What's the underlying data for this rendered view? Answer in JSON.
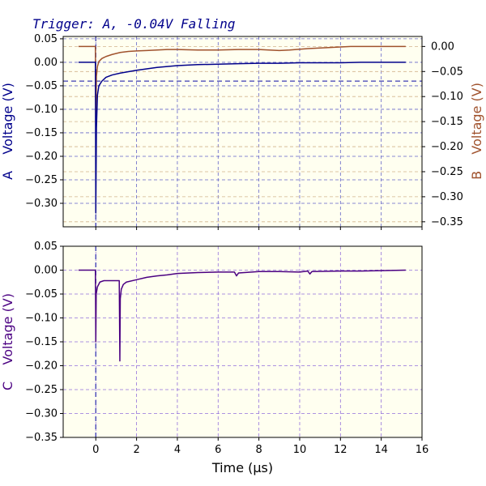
{
  "figure": {
    "title": "Trigger: A, -0.04V Falling",
    "colors": {
      "channel_a": "#00008b",
      "channel_b": "#a0522d",
      "channel_c": "#4b0082",
      "panel_bg": "#fffff0",
      "grid_blue": "#6464c8",
      "grid_b": "#d2b48c",
      "grid_c": "#9370db"
    }
  },
  "chart_data": [
    {
      "type": "line",
      "panel": "top",
      "xlim": [
        -1.6,
        16
      ],
      "ylim": [
        -0.35,
        0.055
      ],
      "y2lim": [
        -0.36,
        0.02
      ],
      "xticks": [
        0,
        2,
        4,
        6,
        8,
        10,
        12,
        14,
        16
      ],
      "yticks": [
        0.05,
        0.0,
        -0.05,
        -0.1,
        -0.15,
        -0.2,
        -0.25,
        -0.3
      ],
      "ytick_labels": [
        "0.05",
        "0.00",
        "−0.05",
        "−0.10",
        "−0.15",
        "−0.20",
        "−0.25",
        "−0.30"
      ],
      "y2ticks": [
        0.0,
        -0.05,
        -0.1,
        -0.15,
        -0.2,
        -0.25,
        -0.3,
        -0.35
      ],
      "y2tick_labels": [
        "0.00",
        "−0.05",
        "−0.10",
        "−0.15",
        "−0.20",
        "−0.25",
        "−0.30",
        "−0.35"
      ],
      "ylabel_channel": "A",
      "ylabel": "Voltage (V)",
      "y2label_channel": "B",
      "y2label": "Voltage (V)",
      "trigger_level": -0.04,
      "trigger_time": 0,
      "grid": true,
      "series": [
        {
          "axis": "left",
          "x": [
            -0.85,
            -0.02,
            0.0,
            0.03,
            0.08,
            0.15,
            0.3,
            0.5,
            0.8,
            1.2,
            1.6,
            2.0,
            2.5,
            3.0,
            3.5,
            4.0,
            5.0,
            6.0,
            7.0,
            8.0,
            9.0,
            10.0,
            11.0,
            12.0,
            13.0,
            14.0,
            15.2
          ],
          "y": [
            0.0,
            0.0,
            -0.32,
            -0.14,
            -0.07,
            -0.05,
            -0.04,
            -0.032,
            -0.027,
            -0.023,
            -0.02,
            -0.017,
            -0.014,
            -0.011,
            -0.009,
            -0.007,
            -0.005,
            -0.004,
            -0.003,
            -0.002,
            -0.002,
            -0.001,
            -0.001,
            -0.001,
            0.0,
            0.0,
            0.0
          ]
        },
        {
          "axis": "right",
          "x": [
            -0.85,
            -0.02,
            0.0,
            0.03,
            0.08,
            0.15,
            0.3,
            0.5,
            0.8,
            1.2,
            1.6,
            2.0,
            2.5,
            3.0,
            3.5,
            4.0,
            5.0,
            6.0,
            7.0,
            8.0,
            9.0,
            9.5,
            10.5,
            11.5,
            12.5,
            13.5,
            15.2
          ],
          "y": [
            0.0,
            0.0,
            -0.17,
            -0.06,
            -0.04,
            -0.03,
            -0.024,
            -0.02,
            -0.016,
            -0.012,
            -0.01,
            -0.009,
            -0.008,
            -0.007,
            -0.006,
            -0.006,
            -0.007,
            -0.007,
            -0.006,
            -0.006,
            -0.008,
            -0.007,
            -0.004,
            -0.002,
            0.0,
            0.0,
            0.0
          ]
        }
      ]
    },
    {
      "type": "line",
      "panel": "bottom",
      "xlim": [
        -1.6,
        16
      ],
      "ylim": [
        -0.35,
        0.05
      ],
      "xticks": [
        0,
        2,
        4,
        6,
        8,
        10,
        12,
        14,
        16
      ],
      "xtick_labels": [
        "0",
        "2",
        "4",
        "6",
        "8",
        "10",
        "12",
        "14",
        "16"
      ],
      "yticks": [
        0.05,
        0.0,
        -0.05,
        -0.1,
        -0.15,
        -0.2,
        -0.25,
        -0.3,
        -0.35
      ],
      "ytick_labels": [
        "0.05",
        "0.00",
        "−0.05",
        "−0.10",
        "−0.15",
        "−0.20",
        "−0.25",
        "−0.30",
        "−0.35"
      ],
      "xlabel": "Time (µs)",
      "ylabel_channel": "C",
      "ylabel": "Voltage (V)",
      "grid": true,
      "series": [
        {
          "x": [
            -0.85,
            -0.02,
            0.0,
            0.02,
            0.08,
            0.2,
            0.4,
            0.8,
            1.15,
            1.18,
            1.2,
            1.25,
            1.35,
            1.5,
            2.0,
            2.5,
            3.0,
            3.5,
            4.0,
            5.0,
            6.0,
            6.8,
            6.9,
            7.0,
            8.0,
            9.0,
            10.0,
            10.4,
            10.5,
            10.6,
            12.0,
            13.0,
            14.0,
            15.2
          ],
          "y": [
            0.0,
            0.0,
            -0.15,
            -0.05,
            -0.035,
            -0.025,
            -0.022,
            -0.022,
            -0.022,
            -0.19,
            -0.06,
            -0.04,
            -0.03,
            -0.025,
            -0.02,
            -0.015,
            -0.012,
            -0.01,
            -0.007,
            -0.005,
            -0.004,
            -0.004,
            -0.012,
            -0.006,
            -0.003,
            -0.003,
            -0.004,
            -0.002,
            -0.008,
            -0.003,
            -0.002,
            -0.002,
            -0.001,
            0.0
          ]
        }
      ]
    }
  ]
}
